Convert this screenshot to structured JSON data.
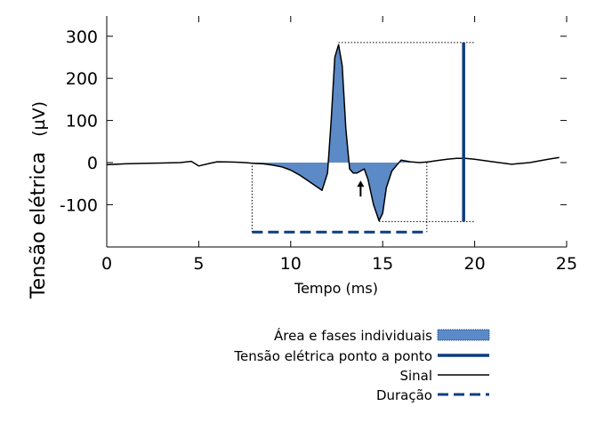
{
  "chart_data": {
    "type": "line",
    "title": "",
    "xlabel": "Tempo (ms)",
    "ylabel": "Tensão elétrica",
    "ylabel_unit": "(µV)",
    "xlim": [
      0,
      25
    ],
    "ylim": [
      -200,
      350
    ],
    "x_ticks": [
      "0",
      "5",
      "10",
      "15",
      "20",
      "25"
    ],
    "y_ticks": [
      "300",
      "200",
      "100",
      "0",
      "-100"
    ],
    "grid": false,
    "legend_position": "bottom-right",
    "series": [
      {
        "name": "Sinal",
        "x": [
          0,
          1,
          2,
          3,
          4,
          4.6,
          5,
          5.6,
          6,
          7,
          7.5,
          8,
          8.5,
          9,
          9.5,
          10,
          10.5,
          11,
          11.5,
          11.7,
          12,
          12.2,
          12.4,
          12.6,
          12.8,
          13,
          13.2,
          13.4,
          13.6,
          13.8,
          14,
          14.2,
          14.5,
          14.8,
          15.0,
          15.2,
          15.5,
          16,
          16.5,
          17,
          17.5,
          18,
          18.5,
          19,
          19.5,
          20,
          21,
          22,
          23,
          24,
          24.6
        ],
        "y": [
          -5,
          -3,
          -2,
          -1,
          0,
          3,
          -8,
          -2,
          2,
          1,
          0,
          -2,
          -3,
          -6,
          -10,
          -18,
          -30,
          -45,
          -60,
          -66,
          -25,
          100,
          250,
          280,
          230,
          80,
          -15,
          -25,
          -25,
          -20,
          -15,
          -40,
          -100,
          -138,
          -120,
          -60,
          -20,
          6,
          2,
          0,
          2,
          5,
          8,
          10,
          10,
          8,
          2,
          -4,
          0,
          8,
          12
        ]
      }
    ],
    "annotations": {
      "peak_to_peak": {
        "x": 19.4,
        "y_max": 285,
        "y_min": -140
      },
      "duration": {
        "x_start": 7.9,
        "x_end": 17.4,
        "y": -165
      },
      "area_x_range": [
        7.9,
        17.4
      ],
      "arrow_at": {
        "x": 13.8,
        "y": -30
      }
    },
    "legend": [
      {
        "label": "Área e fases individuais",
        "symbol": "filled-area"
      },
      {
        "label": "Tensão elétrica ponto a ponto",
        "symbol": "thick-line"
      },
      {
        "label": "Sinal",
        "symbol": "thin-line"
      },
      {
        "label": "Duração",
        "symbol": "dashed-line"
      }
    ],
    "colors": {
      "area": "#5b8ac6",
      "peak_line": "#0e3d7e",
      "signal": "#000000",
      "duration": "#0e3d7e"
    }
  }
}
